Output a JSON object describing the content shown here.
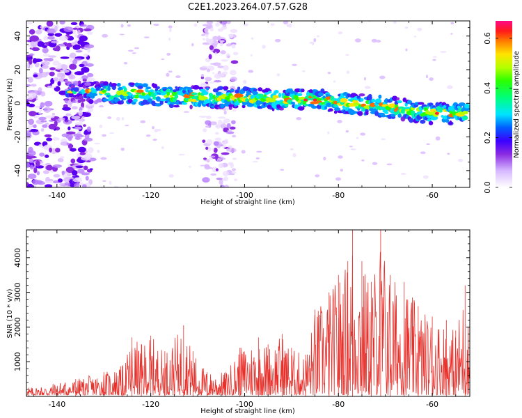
{
  "figure": {
    "title": "C2E1.2023.264.07.57.G28"
  },
  "chart_data": [
    {
      "type": "heatmap",
      "panel": "spectrogram",
      "xlabel": "Height of straight line (km)",
      "ylabel": "Frequency (Hz)",
      "xlim": [
        -146.5,
        -52
      ],
      "ylim": [
        -50,
        49
      ],
      "xticks": [
        -140,
        -120,
        -100,
        -80,
        -60
      ],
      "yticks": [
        -40,
        -20,
        0,
        20,
        40
      ],
      "ridge": [
        {
          "x": -137,
          "y": 7
        },
        {
          "x": -125,
          "y": 6
        },
        {
          "x": -115,
          "y": 4
        },
        {
          "x": -100,
          "y": 3
        },
        {
          "x": -85,
          "y": 2
        },
        {
          "x": -70,
          "y": -2
        },
        {
          "x": -60,
          "y": -6
        },
        {
          "x": -53,
          "y": -6
        }
      ],
      "colorbar": {
        "label": "Normalized spectral amplitude",
        "min": 0,
        "max": 0.67,
        "ticks": [
          0.0,
          0.2,
          0.4,
          0.6
        ],
        "tick_labels": [
          "0.0",
          "0.2",
          "0.4",
          "0.6"
        ],
        "colormap": "gist_ncar-like (white→purple→blue→cyan→green→yellow→red→magenta)"
      }
    },
    {
      "type": "line",
      "panel": "snr",
      "xlabel": "Height of straight line (km)",
      "ylabel": "SNR (10 * v/v)",
      "xlim": [
        -146.5,
        -52
      ],
      "ylim": [
        0,
        4800
      ],
      "xticks": [
        -140,
        -120,
        -100,
        -80,
        -60
      ],
      "yticks": [
        1000,
        2000,
        3000,
        4000
      ],
      "series": [
        {
          "color": "#e8302b",
          "envelope": [
            {
              "x": -146,
              "y": 250
            },
            {
              "x": -136,
              "y": 500
            },
            {
              "x": -130,
              "y": 700
            },
            {
              "x": -126,
              "y": 900
            },
            {
              "x": -124,
              "y": 1700
            },
            {
              "x": -122,
              "y": 1500
            },
            {
              "x": -120,
              "y": 1750
            },
            {
              "x": -117,
              "y": 1300
            },
            {
              "x": -113,
              "y": 2050
            },
            {
              "x": -111,
              "y": 1300
            },
            {
              "x": -108,
              "y": 700
            },
            {
              "x": -104,
              "y": 700
            },
            {
              "x": -101,
              "y": 1400
            },
            {
              "x": -97,
              "y": 1700
            },
            {
              "x": -95,
              "y": 1500
            },
            {
              "x": -92,
              "y": 1800
            },
            {
              "x": -90,
              "y": 1400
            },
            {
              "x": -87,
              "y": 1200
            },
            {
              "x": -85,
              "y": 2500
            },
            {
              "x": -82,
              "y": 3000
            },
            {
              "x": -80,
              "y": 3500
            },
            {
              "x": -78,
              "y": 3900
            },
            {
              "x": -77,
              "y": 4800
            },
            {
              "x": -75,
              "y": 3900
            },
            {
              "x": -73,
              "y": 3300
            },
            {
              "x": -71,
              "y": 4800
            },
            {
              "x": -69,
              "y": 3500
            },
            {
              "x": -66,
              "y": 3300
            },
            {
              "x": -63,
              "y": 2600
            },
            {
              "x": -60,
              "y": 2300
            },
            {
              "x": -57,
              "y": 2200
            },
            {
              "x": -55,
              "y": 1900
            },
            {
              "x": -53,
              "y": 3200
            },
            {
              "x": -52,
              "y": 1700
            }
          ]
        }
      ]
    }
  ]
}
